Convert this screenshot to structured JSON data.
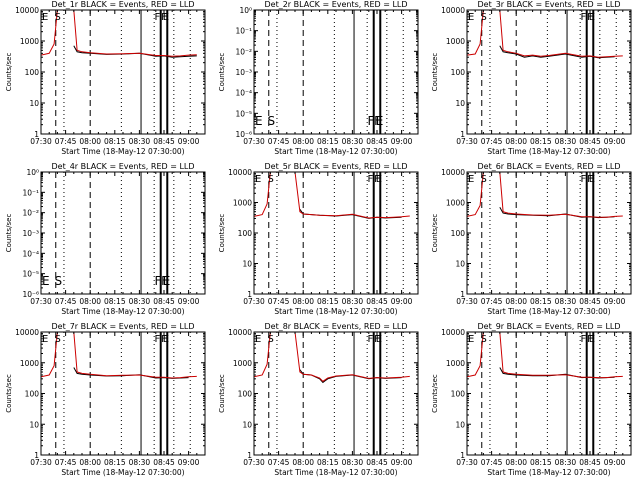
{
  "chart_data": [
    {
      "type": "line",
      "title": "Det_1r BLACK = Events, RED = LLD",
      "ylabel": "Counts/sec",
      "xlabel": "Start Time (18-May-12 07:30:00)",
      "y_scale": "log",
      "yticks": [
        "1",
        "10",
        "100",
        "1000",
        "10000"
      ],
      "ylim": [
        1,
        10000
      ],
      "xticks": [
        "07:30",
        "07:45",
        "08:00",
        "08:15",
        "08:30",
        "08:45",
        "09:00"
      ],
      "xlim": [
        "07:30",
        "09:10"
      ],
      "markers": [
        {
          "label": "E",
          "time": "07:30"
        },
        {
          "label": "S",
          "time": "07:37"
        },
        {
          "label": "F",
          "time": "08:38"
        },
        {
          "label": "F",
          "time": "08:42"
        },
        {
          "label": "E",
          "time": "08:43"
        }
      ],
      "series": [
        {
          "color": "#000000",
          "x": [
            "07:50",
            "07:52",
            "07:55",
            "08:00",
            "08:10",
            "08:20",
            "08:30",
            "08:40",
            "08:45",
            "08:50",
            "08:55",
            "09:00",
            "09:05"
          ],
          "values": [
            700,
            450,
            420,
            400,
            370,
            380,
            400,
            320,
            330,
            300,
            310,
            320,
            330
          ]
        },
        {
          "color": "#cc0000",
          "x": [
            "07:30",
            "07:35",
            "07:38",
            "07:40",
            "07:45",
            "07:50",
            "07:52",
            "07:55",
            "08:00",
            "08:10",
            "08:20",
            "08:30",
            "08:40",
            "08:45",
            "08:50",
            "08:55",
            "09:00",
            "09:05"
          ],
          "values": [
            350,
            400,
            800,
            10000,
            10000,
            10000,
            500,
            450,
            420,
            380,
            390,
            400,
            340,
            340,
            320,
            330,
            350,
            360
          ]
        }
      ]
    },
    {
      "type": "line",
      "title": "Det_2r BLACK = Events, RED = LLD",
      "ylabel": "Counts/sec",
      "xlabel": "Start Time (18-May-12 07:30:00)",
      "y_scale": "log",
      "yticks": [
        "10⁻⁶",
        "10⁻⁵",
        "10⁻⁴",
        "10⁻³",
        "10⁻²",
        "10⁻¹",
        "10⁰"
      ],
      "ylim": [
        1e-06,
        1
      ],
      "xticks": [
        "07:30",
        "07:45",
        "08:00",
        "08:15",
        "08:30",
        "08:45",
        "09:00"
      ],
      "xlim": [
        "07:30",
        "09:10"
      ],
      "markers": [
        {
          "label": "E",
          "time": "07:30"
        },
        {
          "label": "S",
          "time": "07:37"
        },
        {
          "label": "F",
          "time": "08:38"
        },
        {
          "label": "F",
          "time": "08:42"
        },
        {
          "label": "E",
          "time": "08:43"
        }
      ],
      "series": []
    },
    {
      "type": "line",
      "title": "Det_3r BLACK = Events, RED = LLD",
      "ylabel": "Counts/sec",
      "xlabel": "Start Time (18-May-12 07:30:00)",
      "y_scale": "log",
      "yticks": [
        "1",
        "10",
        "100",
        "1000",
        "10000"
      ],
      "ylim": [
        1,
        10000
      ],
      "xticks": [
        "07:30",
        "07:45",
        "08:00",
        "08:15",
        "08:30",
        "08:45",
        "09:00"
      ],
      "xlim": [
        "07:30",
        "09:10"
      ],
      "markers": [
        {
          "label": "E",
          "time": "07:30"
        },
        {
          "label": "S",
          "time": "07:37"
        },
        {
          "label": "F",
          "time": "08:38"
        },
        {
          "label": "F",
          "time": "08:42"
        },
        {
          "label": "E",
          "time": "08:43"
        }
      ],
      "series": [
        {
          "color": "#000000",
          "x": [
            "07:50",
            "07:52",
            "07:55",
            "08:00",
            "08:05",
            "08:10",
            "08:15",
            "08:20",
            "08:30",
            "08:40",
            "08:45",
            "08:50",
            "08:55",
            "09:00"
          ],
          "values": [
            700,
            450,
            420,
            380,
            300,
            330,
            300,
            320,
            380,
            300,
            320,
            290,
            300,
            310
          ]
        },
        {
          "color": "#cc0000",
          "x": [
            "07:30",
            "07:35",
            "07:38",
            "07:40",
            "07:45",
            "07:50",
            "07:52",
            "07:55",
            "08:00",
            "08:05",
            "08:10",
            "08:15",
            "08:20",
            "08:30",
            "08:40",
            "08:45",
            "08:50",
            "08:55",
            "09:00",
            "09:05"
          ],
          "values": [
            350,
            380,
            800,
            10000,
            10000,
            10000,
            500,
            450,
            400,
            330,
            350,
            320,
            340,
            400,
            320,
            330,
            300,
            310,
            320,
            330
          ]
        }
      ]
    },
    {
      "type": "line",
      "title": "Det_4r BLACK = Events, RED = LLD",
      "ylabel": "Counts/sec",
      "xlabel": "Start Time (18-May-12 07:30:00)",
      "y_scale": "log",
      "yticks": [
        "10⁻⁶",
        "10⁻⁵",
        "10⁻⁴",
        "10⁻³",
        "10⁻²",
        "10⁻¹",
        "10⁰"
      ],
      "ylim": [
        1e-06,
        1
      ],
      "xticks": [
        "07:30",
        "07:45",
        "08:00",
        "08:15",
        "08:30",
        "08:45",
        "09:00"
      ],
      "xlim": [
        "07:30",
        "09:10"
      ],
      "markers": [
        {
          "label": "E",
          "time": "07:30"
        },
        {
          "label": "S",
          "time": "07:37"
        },
        {
          "label": "F",
          "time": "08:38"
        },
        {
          "label": "F",
          "time": "08:42"
        },
        {
          "label": "E",
          "time": "08:43"
        }
      ],
      "series": []
    },
    {
      "type": "line",
      "title": "Det_5r BLACK = Events, RED = LLD",
      "ylabel": "Counts/sec",
      "xlabel": "Start Time (18-May-12 07:30:00)",
      "y_scale": "log",
      "yticks": [
        "1",
        "10",
        "100",
        "1000",
        "10000"
      ],
      "ylim": [
        1,
        10000
      ],
      "xticks": [
        "07:30",
        "07:45",
        "08:00",
        "08:15",
        "08:30",
        "08:45",
        "09:00"
      ],
      "xlim": [
        "07:30",
        "09:10"
      ],
      "markers": [
        {
          "label": "E",
          "time": "07:30"
        },
        {
          "label": "S",
          "time": "07:37"
        },
        {
          "label": "F",
          "time": "08:38"
        },
        {
          "label": "F",
          "time": "08:42"
        },
        {
          "label": "E",
          "time": "08:43"
        }
      ],
      "series": [
        {
          "color": "#000000",
          "x": [
            "07:58",
            "08:00",
            "08:05",
            "08:10",
            "08:20",
            "08:30",
            "08:40",
            "08:45",
            "08:50",
            "08:55",
            "09:00"
          ],
          "values": [
            600,
            420,
            400,
            380,
            360,
            400,
            300,
            330,
            310,
            320,
            330
          ]
        },
        {
          "color": "#cc0000",
          "x": [
            "07:30",
            "07:35",
            "07:38",
            "07:40",
            "07:45",
            "07:50",
            "07:55",
            "07:58",
            "08:00",
            "08:05",
            "08:10",
            "08:20",
            "08:30",
            "08:40",
            "08:45",
            "08:50",
            "08:55",
            "09:00",
            "09:05"
          ],
          "values": [
            350,
            400,
            900,
            10000,
            10000,
            10000,
            10000,
            500,
            420,
            400,
            380,
            370,
            410,
            310,
            330,
            320,
            330,
            340,
            360
          ]
        }
      ]
    },
    {
      "type": "line",
      "title": "Det_6r BLACK = Events, RED = LLD",
      "ylabel": "Counts/sec",
      "xlabel": "Start Time (18-May-12 07:30:00)",
      "y_scale": "log",
      "yticks": [
        "1",
        "10",
        "100",
        "1000",
        "10000"
      ],
      "ylim": [
        1,
        10000
      ],
      "xticks": [
        "07:30",
        "07:45",
        "08:00",
        "08:15",
        "08:30",
        "08:45",
        "09:00"
      ],
      "xlim": [
        "07:30",
        "09:10"
      ],
      "markers": [
        {
          "label": "E",
          "time": "07:30"
        },
        {
          "label": "S",
          "time": "07:37"
        },
        {
          "label": "F",
          "time": "08:38"
        },
        {
          "label": "F",
          "time": "08:42"
        },
        {
          "label": "E",
          "time": "08:43"
        }
      ],
      "series": [
        {
          "color": "#000000",
          "x": [
            "07:50",
            "07:52",
            "07:55",
            "08:00",
            "08:10",
            "08:20",
            "08:30",
            "08:40",
            "08:45",
            "08:50",
            "08:55",
            "09:00"
          ],
          "values": [
            700,
            450,
            420,
            400,
            380,
            370,
            420,
            330,
            340,
            320,
            330,
            340
          ]
        },
        {
          "color": "#cc0000",
          "x": [
            "07:30",
            "07:35",
            "07:38",
            "07:40",
            "07:45",
            "07:50",
            "07:52",
            "07:55",
            "08:00",
            "08:10",
            "08:20",
            "08:30",
            "08:40",
            "08:45",
            "08:50",
            "08:55",
            "09:00",
            "09:05"
          ],
          "values": [
            350,
            400,
            800,
            10000,
            10000,
            10000,
            500,
            450,
            420,
            390,
            380,
            410,
            340,
            340,
            330,
            330,
            350,
            360
          ]
        }
      ]
    },
    {
      "type": "line",
      "title": "Det_7r BLACK = Events, RED = LLD",
      "ylabel": "Counts/sec",
      "xlabel": "Start Time (18-May-12 07:30:00)",
      "y_scale": "log",
      "yticks": [
        "1",
        "10",
        "100",
        "1000",
        "10000"
      ],
      "ylim": [
        1,
        10000
      ],
      "xticks": [
        "07:30",
        "07:45",
        "08:00",
        "08:15",
        "08:30",
        "08:45",
        "09:00"
      ],
      "xlim": [
        "07:30",
        "09:10"
      ],
      "markers": [
        {
          "label": "E",
          "time": "07:30"
        },
        {
          "label": "S",
          "time": "07:37"
        },
        {
          "label": "F",
          "time": "08:38"
        },
        {
          "label": "F",
          "time": "08:42"
        },
        {
          "label": "E",
          "time": "08:43"
        }
      ],
      "series": [
        {
          "color": "#000000",
          "x": [
            "07:50",
            "07:52",
            "07:55",
            "08:00",
            "08:10",
            "08:20",
            "08:30",
            "08:40",
            "08:45",
            "08:50",
            "08:55",
            "09:00"
          ],
          "values": [
            700,
            450,
            420,
            400,
            370,
            380,
            410,
            320,
            330,
            310,
            320,
            330
          ]
        },
        {
          "color": "#cc0000",
          "x": [
            "07:30",
            "07:35",
            "07:38",
            "07:40",
            "07:45",
            "07:50",
            "07:52",
            "07:55",
            "08:00",
            "08:10",
            "08:20",
            "08:30",
            "08:40",
            "08:45",
            "08:50",
            "08:55",
            "09:00",
            "09:05"
          ],
          "values": [
            350,
            400,
            800,
            10000,
            10000,
            10000,
            500,
            450,
            420,
            380,
            390,
            400,
            340,
            340,
            320,
            330,
            350,
            360
          ]
        }
      ]
    },
    {
      "type": "line",
      "title": "Det_8r BLACK = Events, RED = LLD",
      "ylabel": "Counts/sec",
      "xlabel": "Start Time (18-May-12 07:30:00)",
      "y_scale": "log",
      "yticks": [
        "1",
        "10",
        "100",
        "1000",
        "10000"
      ],
      "ylim": [
        1,
        10000
      ],
      "xticks": [
        "07:30",
        "07:45",
        "08:00",
        "08:15",
        "08:30",
        "08:45",
        "09:00"
      ],
      "xlim": [
        "07:30",
        "09:10"
      ],
      "markers": [
        {
          "label": "E",
          "time": "07:30"
        },
        {
          "label": "S",
          "time": "07:37"
        },
        {
          "label": "F",
          "time": "08:38"
        },
        {
          "label": "F",
          "time": "08:42"
        },
        {
          "label": "E",
          "time": "08:43"
        }
      ],
      "series": [
        {
          "color": "#000000",
          "x": [
            "07:58",
            "08:00",
            "08:05",
            "08:10",
            "08:12",
            "08:15",
            "08:20",
            "08:30",
            "08:40",
            "08:45",
            "08:50",
            "08:55",
            "09:00"
          ],
          "values": [
            600,
            420,
            400,
            300,
            230,
            300,
            360,
            400,
            300,
            330,
            310,
            320,
            330
          ]
        },
        {
          "color": "#cc0000",
          "x": [
            "07:30",
            "07:35",
            "07:38",
            "07:40",
            "07:45",
            "07:50",
            "07:55",
            "07:58",
            "08:00",
            "08:05",
            "08:10",
            "08:12",
            "08:15",
            "08:20",
            "08:30",
            "08:40",
            "08:45",
            "08:50",
            "08:55",
            "09:00",
            "09:05"
          ],
          "values": [
            350,
            400,
            900,
            10000,
            10000,
            10000,
            10000,
            500,
            420,
            400,
            320,
            250,
            320,
            370,
            410,
            310,
            330,
            320,
            330,
            340,
            360
          ]
        }
      ]
    },
    {
      "type": "line",
      "title": "Det_9r BLACK = Events, RED = LLD",
      "ylabel": "Counts/sec",
      "xlabel": "Start Time (18-May-12 07:30:00)",
      "y_scale": "log",
      "yticks": [
        "1",
        "10",
        "100",
        "1000",
        "10000"
      ],
      "ylim": [
        1,
        10000
      ],
      "xticks": [
        "07:30",
        "07:45",
        "08:00",
        "08:15",
        "08:30",
        "08:45",
        "09:00"
      ],
      "xlim": [
        "07:30",
        "09:10"
      ],
      "markers": [
        {
          "label": "E",
          "time": "07:30"
        },
        {
          "label": "S",
          "time": "07:37"
        },
        {
          "label": "F",
          "time": "08:38"
        },
        {
          "label": "F",
          "time": "08:42"
        },
        {
          "label": "E",
          "time": "08:43"
        }
      ],
      "series": [
        {
          "color": "#000000",
          "x": [
            "07:50",
            "07:52",
            "07:55",
            "08:00",
            "08:10",
            "08:20",
            "08:30",
            "08:40",
            "08:45",
            "08:50",
            "08:55",
            "09:00"
          ],
          "values": [
            700,
            450,
            420,
            400,
            380,
            380,
            420,
            330,
            340,
            320,
            330,
            340
          ]
        },
        {
          "color": "#cc0000",
          "x": [
            "07:30",
            "07:35",
            "07:38",
            "07:40",
            "07:45",
            "07:50",
            "07:52",
            "07:55",
            "08:00",
            "08:10",
            "08:20",
            "08:30",
            "08:40",
            "08:45",
            "08:50",
            "08:55",
            "09:00",
            "09:05"
          ],
          "values": [
            350,
            400,
            800,
            10000,
            10000,
            10000,
            500,
            450,
            420,
            390,
            390,
            410,
            340,
            340,
            330,
            330,
            350,
            360
          ]
        }
      ]
    }
  ]
}
